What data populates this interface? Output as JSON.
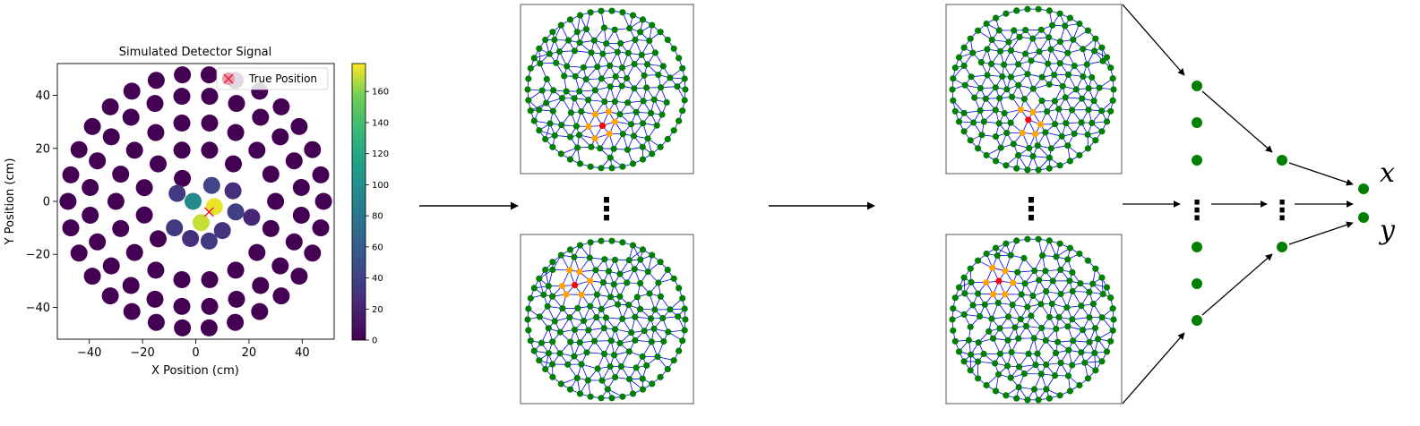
{
  "chart_data": {
    "type": "scatter",
    "title": "Simulated Detector Signal",
    "xlabel": "X Position (cm)",
    "ylabel": "Y Position (cm)",
    "xlim": [
      -52,
      52
    ],
    "ylim": [
      -52,
      52
    ],
    "x_ticks": [
      -40,
      -20,
      0,
      20,
      40
    ],
    "y_ticks": [
      -40,
      -20,
      0,
      20,
      40
    ],
    "x_tick_labels": [
      "−40",
      "−20",
      "0",
      "20",
      "40"
    ],
    "y_tick_labels": [
      "−40",
      "−20",
      "0",
      "20",
      "40"
    ],
    "legend": {
      "label": "True Position",
      "placement": "top-right"
    },
    "true_position": {
      "x": 5,
      "y": -4
    },
    "colorbar": {
      "ticks": [
        0,
        20,
        40,
        60,
        80,
        100,
        120,
        140,
        160
      ],
      "min": 0,
      "max": 178,
      "colormap": "viridis"
    },
    "detector_layout": {
      "rings": [
        {
          "radius": 0,
          "count": 1,
          "phase_deg": 0
        },
        {
          "radius": 10,
          "count": 6,
          "phase_deg": 0
        },
        {
          "radius": 20,
          "count": 12,
          "phase_deg": 15
        },
        {
          "radius": 30,
          "count": 18,
          "phase_deg": 0
        },
        {
          "radius": 40,
          "count": 24,
          "phase_deg": 7.5
        },
        {
          "radius": 48,
          "count": 30,
          "phase_deg": 0
        }
      ],
      "background_signal": 0
    },
    "hot_detectors": [
      {
        "x": 7,
        "y": -2,
        "signal": 175
      },
      {
        "x": 2,
        "y": -8,
        "signal": 170
      },
      {
        "x": -1,
        "y": 0,
        "signal": 95
      },
      {
        "x": 6,
        "y": 6,
        "signal": 42
      },
      {
        "x": -7,
        "y": 3,
        "signal": 35
      },
      {
        "x": -6,
        "y": -5,
        "signal": 35
      },
      {
        "x": 15,
        "y": -4,
        "signal": 38
      },
      {
        "x": 5,
        "y": -15,
        "signal": 35
      },
      {
        "x": -2,
        "y": -14,
        "signal": 28
      },
      {
        "x": 14,
        "y": 4,
        "signal": 28
      },
      {
        "x": 10,
        "y": -11,
        "signal": 30
      },
      {
        "x": -8,
        "y": -10,
        "signal": 22
      },
      {
        "x": 21,
        "y": -6,
        "signal": 22
      }
    ]
  },
  "annotations": {
    "dots": "⋮",
    "output_x": "x",
    "output_y": "y"
  },
  "colors": {
    "graph_edge": "#0000ee",
    "graph_node": "#008000",
    "graph_center": "#ff0000",
    "graph_neighbor": "#ffa500",
    "arrow": "#000000"
  }
}
